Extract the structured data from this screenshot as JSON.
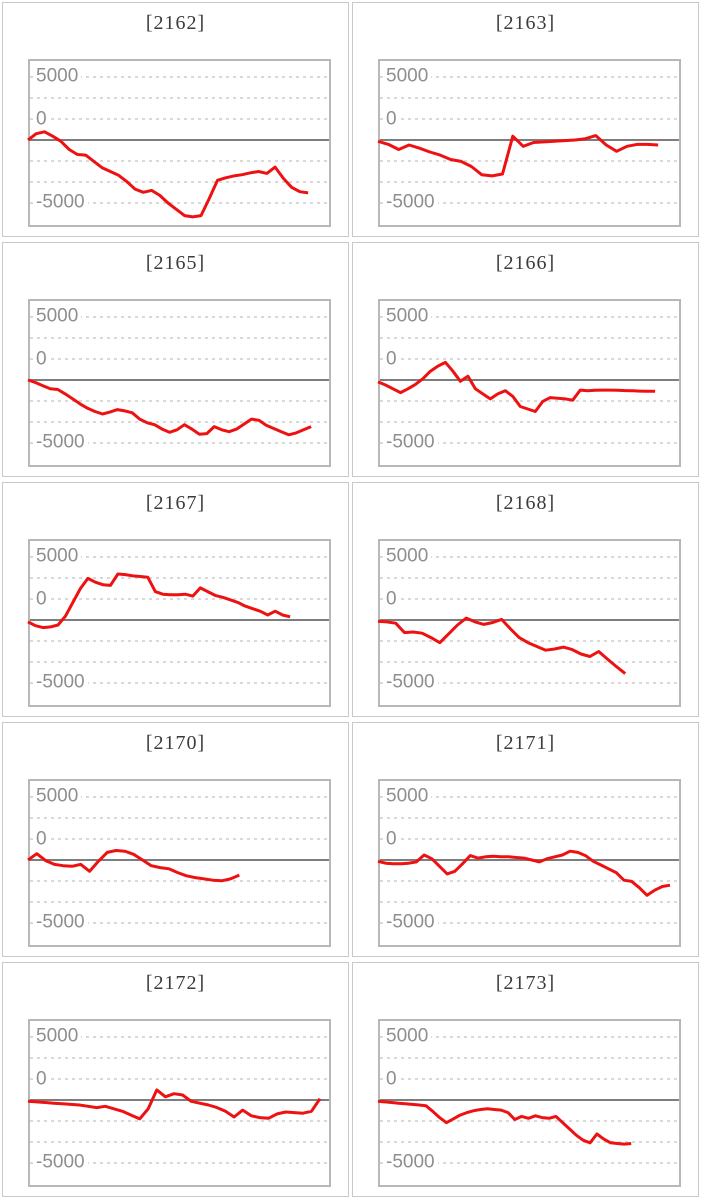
{
  "charts_meta": {
    "y_axis_labels": [
      "5000",
      "0",
      "-5000"
    ],
    "yticks": [
      5000,
      0,
      -5000
    ],
    "ylim": [
      -6750,
      6270
    ],
    "grid": true,
    "legend": "none",
    "series_color": "#ee1111",
    "zero_line_color": "#7d7d7d",
    "grid_color": "#d9d9d9",
    "plot_border_color": "#b8b8b8",
    "cell_border_color": "#c9c9c9",
    "title_color": "#3b3b3b",
    "axis_label_color": "#8e8e8e"
  },
  "chart_data": [
    {
      "id": "2162",
      "title": "[2162]",
      "type": "line",
      "x_end_fraction": 0.93,
      "values": [
        0,
        500,
        650,
        300,
        -100,
        -750,
        -1150,
        -1200,
        -1700,
        -2200,
        -2500,
        -2800,
        -3300,
        -3900,
        -4150,
        -4000,
        -4400,
        -5000,
        -5500,
        -6000,
        -6100,
        -6000,
        -4650,
        -3200,
        -3000,
        -2850,
        -2750,
        -2600,
        -2500,
        -2650,
        -2150,
        -3050,
        -3750,
        -4100,
        -4200
      ]
    },
    {
      "id": "2163",
      "title": "[2163]",
      "type": "line",
      "x_end_fraction": 0.93,
      "values": [
        -100,
        -350,
        -750,
        -400,
        -650,
        -950,
        -1200,
        -1550,
        -1700,
        -2100,
        -2750,
        -2850,
        -2700,
        300,
        -500,
        -200,
        -150,
        -100,
        -50,
        0,
        100,
        350,
        -400,
        -900,
        -500,
        -350,
        -350,
        -400
      ]
    },
    {
      "id": "2165",
      "title": "[2165]",
      "type": "line",
      "x_end_fraction": 0.94,
      "values": [
        0,
        -200,
        -450,
        -700,
        -750,
        -1100,
        -1500,
        -1900,
        -2250,
        -2500,
        -2700,
        -2550,
        -2350,
        -2450,
        -2600,
        -3100,
        -3400,
        -3550,
        -3900,
        -4150,
        -3950,
        -3550,
        -3900,
        -4300,
        -4250,
        -3700,
        -3950,
        -4100,
        -3900,
        -3500,
        -3100,
        -3200,
        -3600,
        -3850,
        -4100,
        -4350,
        -4200,
        -3950,
        -3700
      ]
    },
    {
      "id": "2166",
      "title": "[2166]",
      "type": "line",
      "x_end_fraction": 0.92,
      "values": [
        -150,
        -400,
        -700,
        -1000,
        -700,
        -350,
        100,
        700,
        1100,
        1400,
        700,
        -100,
        300,
        -700,
        -1100,
        -1500,
        -1100,
        -850,
        -1300,
        -2100,
        -2300,
        -2500,
        -1700,
        -1400,
        -1450,
        -1500,
        -1600,
        -800,
        -850,
        -820,
        -800,
        -800,
        -820,
        -840,
        -860,
        -880,
        -900,
        -900
      ]
    },
    {
      "id": "2167",
      "title": "[2167]",
      "type": "line",
      "x_end_fraction": 0.87,
      "values": [
        -150,
        -450,
        -600,
        -550,
        -400,
        300,
        1400,
        2500,
        3300,
        3000,
        2800,
        2750,
        3650,
        3600,
        3500,
        3450,
        3400,
        2250,
        2050,
        2000,
        2000,
        2050,
        1900,
        2550,
        2250,
        1950,
        1800,
        1600,
        1400,
        1100,
        900,
        700,
        400,
        700,
        400,
        250
      ]
    },
    {
      "id": "2168",
      "title": "[2168]",
      "type": "line",
      "x_end_fraction": 0.82,
      "values": [
        -100,
        -150,
        -250,
        -1000,
        -950,
        -1050,
        -1400,
        -1800,
        -1100,
        -400,
        150,
        -150,
        -350,
        -200,
        50,
        -700,
        -1400,
        -1800,
        -2100,
        -2400,
        -2300,
        -2150,
        -2350,
        -2700,
        -2900,
        -2500,
        -3100,
        -3700,
        -4250
      ]
    },
    {
      "id": "2170",
      "title": "[2170]",
      "type": "line",
      "x_end_fraction": 0.7,
      "values": [
        0,
        500,
        -50,
        -350,
        -450,
        -500,
        -350,
        -900,
        -100,
        600,
        750,
        700,
        450,
        0,
        -450,
        -600,
        -700,
        -1000,
        -1250,
        -1400,
        -1500,
        -1600,
        -1650,
        -1500,
        -1200
      ]
    },
    {
      "id": "2171",
      "title": "[2171]",
      "type": "line",
      "x_end_fraction": 0.97,
      "values": [
        -100,
        -250,
        -300,
        -300,
        -250,
        -150,
        400,
        100,
        -500,
        -1100,
        -900,
        -300,
        350,
        150,
        250,
        300,
        250,
        250,
        200,
        150,
        0,
        -150,
        100,
        250,
        400,
        700,
        600,
        350,
        -100,
        -400,
        -700,
        -1000,
        -1600,
        -1700,
        -2200,
        -2800,
        -2400,
        -2100,
        -2000
      ]
    },
    {
      "id": "2172",
      "title": "[2172]",
      "type": "line",
      "x_end_fraction": 0.97,
      "values": [
        -100,
        -150,
        -200,
        -250,
        -300,
        -350,
        -400,
        -500,
        -600,
        -500,
        -700,
        -900,
        -1200,
        -1500,
        -700,
        800,
        250,
        500,
        400,
        -100,
        -250,
        -400,
        -600,
        -900,
        -1350,
        -800,
        -1250,
        -1400,
        -1450,
        -1100,
        -950,
        -1000,
        -1050,
        -900,
        100
      ]
    },
    {
      "id": "2173",
      "title": "[2173]",
      "type": "line",
      "x_end_fraction": 0.84,
      "values": [
        -100,
        -150,
        -200,
        -250,
        -300,
        -350,
        -400,
        -450,
        -900,
        -1400,
        -1800,
        -1500,
        -1200,
        -1000,
        -850,
        -750,
        -700,
        -750,
        -800,
        -1000,
        -1550,
        -1300,
        -1450,
        -1250,
        -1400,
        -1450,
        -1300,
        -1800,
        -2300,
        -2800,
        -3200,
        -3400,
        -2700,
        -3100,
        -3400,
        -3450,
        -3500,
        -3450
      ]
    }
  ]
}
